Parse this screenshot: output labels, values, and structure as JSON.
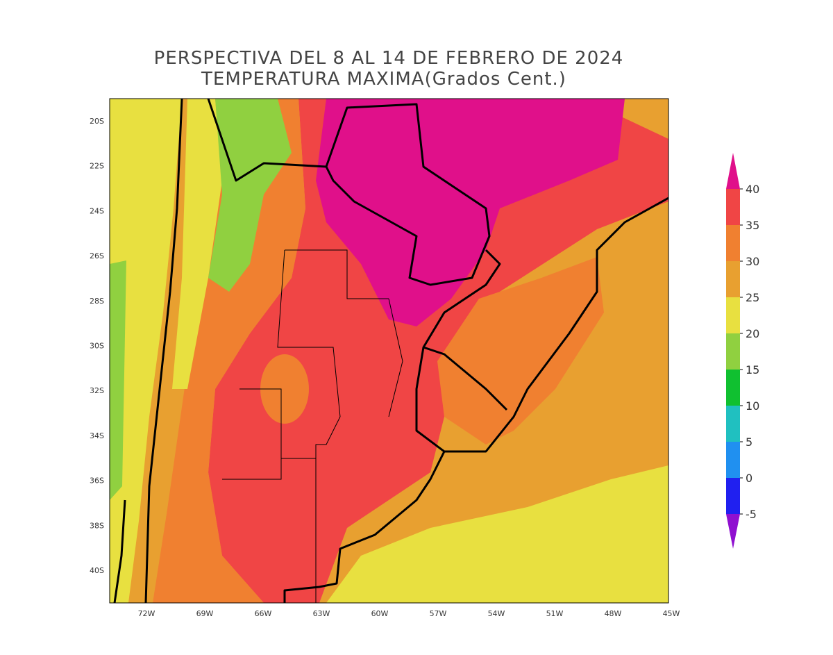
{
  "title": [
    "PERSPECTIVA DEL 8 AL 14 DE FEBRERO DE 2024",
    "TEMPERATURA MAXIMA(Grados Cent.)"
  ],
  "map": {
    "lat_labels": [
      "20S",
      "22S",
      "24S",
      "26S",
      "28S",
      "30S",
      "32S",
      "34S",
      "36S",
      "38S",
      "40S"
    ],
    "lon_labels": [
      "72W",
      "69W",
      "66W",
      "63W",
      "60W",
      "57W",
      "54W",
      "51W",
      "48W",
      "45W"
    ]
  },
  "colorbar": {
    "labels": [
      40,
      35,
      30,
      25,
      20,
      15,
      10,
      5,
      0,
      -5
    ],
    "colors": [
      "#e0108a",
      "#f04545",
      "#f08030",
      "#e8a030",
      "#e8e040",
      "#90d040",
      "#10c030",
      "#20c0c0",
      "#2090f0",
      "#2020f0",
      "#9010d0"
    ]
  }
}
